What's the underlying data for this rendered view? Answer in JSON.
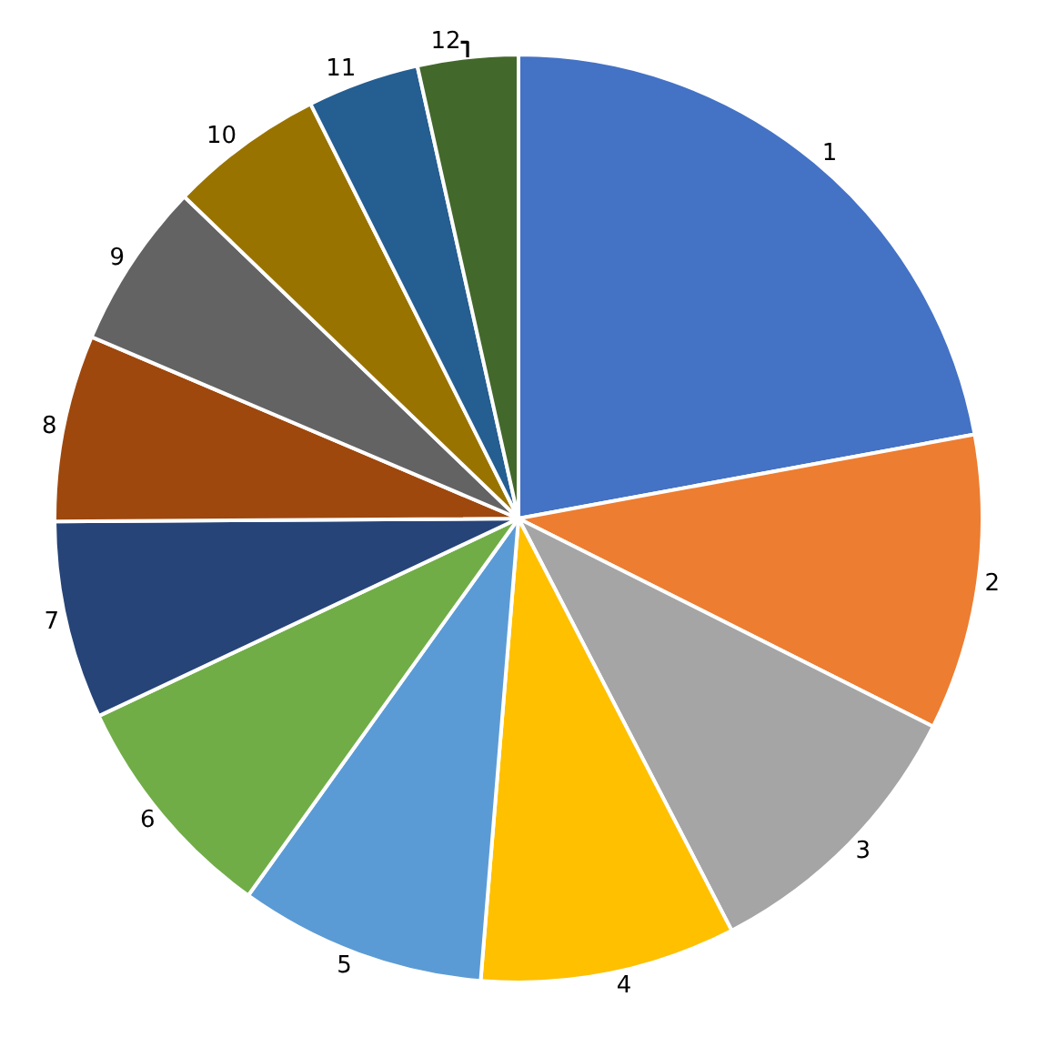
{
  "chart_data": {
    "type": "pie",
    "categories": [
      "1",
      "2",
      "3",
      "4",
      "5",
      "6",
      "7",
      "8",
      "9",
      "10",
      "11",
      "12"
    ],
    "values": [
      22.1,
      10.3,
      10.0,
      8.9,
      8.6,
      8.1,
      6.9,
      6.5,
      5.8,
      5.4,
      3.9,
      3.5
    ],
    "colors": [
      "#4472c4",
      "#ed7d31",
      "#a5a5a5",
      "#ffc000",
      "#5b9bd5",
      "#70ad47",
      "#264478",
      "#9e480e",
      "#636363",
      "#997300",
      "#255e91",
      "#43682b"
    ],
    "legend": false
  }
}
